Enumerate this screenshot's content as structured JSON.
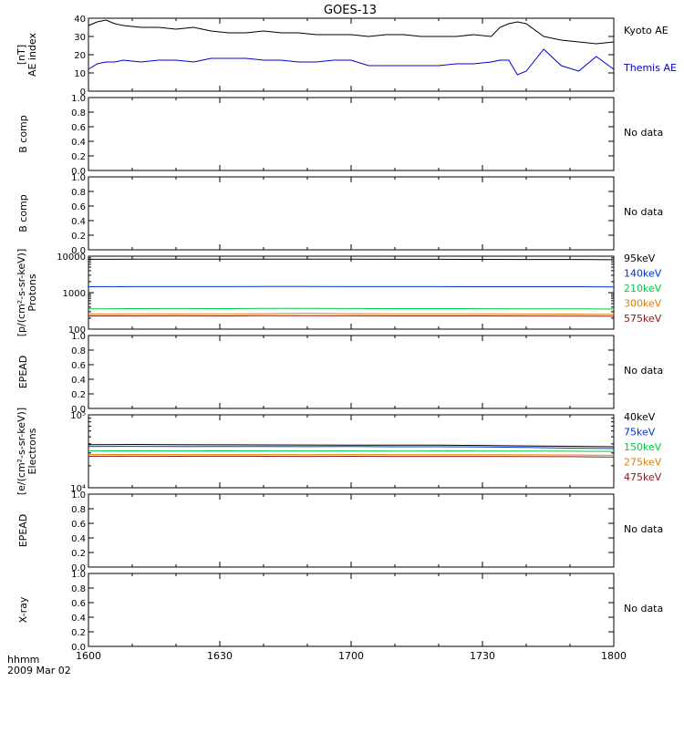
{
  "title": "GOES-13",
  "time_axis": {
    "ticks": [
      "1600",
      "1630",
      "1700",
      "1730",
      "1800"
    ],
    "range_minutes": [
      0,
      120
    ],
    "label_top": "hhmm",
    "label_bottom": "2009 Mar 02"
  },
  "chart_data": [
    {
      "type": "line",
      "panel": "ae",
      "ylabel": [
        "AE index",
        "[nT]"
      ],
      "ylim": [
        0,
        40
      ],
      "yticks": [
        "0",
        "10",
        "20",
        "30",
        "40"
      ],
      "x": [
        0,
        2,
        4,
        6,
        8,
        12,
        16,
        20,
        24,
        28,
        32,
        36,
        40,
        44,
        48,
        52,
        56,
        60,
        64,
        68,
        72,
        76,
        80,
        84,
        88,
        92,
        94,
        96,
        98,
        100,
        104,
        108,
        112,
        116,
        120
      ],
      "series": [
        {
          "name": "Kyoto AE",
          "color": "#000000",
          "values": [
            36,
            38,
            39,
            37,
            36,
            35,
            35,
            34,
            35,
            33,
            32,
            32,
            33,
            32,
            32,
            31,
            31,
            31,
            30,
            31,
            31,
            30,
            30,
            30,
            31,
            30,
            35,
            37,
            38,
            37,
            30,
            28,
            27,
            26,
            27
          ]
        },
        {
          "name": "Themis AE",
          "color": "#0000cc",
          "values": [
            12,
            15,
            16,
            16,
            17,
            16,
            17,
            17,
            16,
            18,
            18,
            18,
            17,
            17,
            16,
            16,
            17,
            17,
            14,
            14,
            14,
            14,
            14,
            15,
            15,
            16,
            17,
            17,
            9,
            11,
            23,
            14,
            11,
            19,
            12
          ]
        }
      ]
    },
    {
      "type": "line",
      "panel": "b1",
      "ylabel": [
        "B comp"
      ],
      "ylim": [
        0,
        1
      ],
      "yticks": [
        "0.0",
        "0.2",
        "0.4",
        "0.6",
        "0.8",
        "1.0"
      ],
      "status": "No data"
    },
    {
      "type": "line",
      "panel": "b2",
      "ylabel": [
        "B comp"
      ],
      "ylim": [
        0,
        1
      ],
      "yticks": [
        "0.0",
        "0.2",
        "0.4",
        "0.6",
        "0.8",
        "1.0"
      ],
      "status": "No data"
    },
    {
      "type": "line",
      "panel": "protons",
      "ylabel": [
        "Protons",
        "[p/(cm²-s-sr-keV)]"
      ],
      "yscale": "log",
      "ylim": [
        100,
        10000
      ],
      "yticks": [
        "100",
        "1000",
        "10000"
      ],
      "x": [
        0,
        10,
        20,
        30,
        40,
        50,
        60,
        70,
        80,
        90,
        100,
        110,
        120
      ],
      "series": [
        {
          "name": "575keV",
          "color": "#8b1a1a",
          "values": [
            230,
            230,
            232,
            231,
            233,
            235,
            232,
            230,
            231,
            230,
            229,
            228,
            225
          ]
        },
        {
          "name": "300keV",
          "color": "#e08000",
          "values": [
            260,
            262,
            263,
            262,
            264,
            270,
            265,
            262,
            263,
            262,
            260,
            258,
            252
          ]
        },
        {
          "name": "210keV",
          "color": "#00cc44",
          "values": [
            360,
            365,
            368,
            366,
            370,
            372,
            368,
            365,
            366,
            364,
            362,
            360,
            355
          ]
        },
        {
          "name": "140keV",
          "color": "#0033cc",
          "values": [
            1450,
            1460,
            1465,
            1460,
            1468,
            1470,
            1462,
            1460,
            1458,
            1455,
            1452,
            1450,
            1440
          ]
        },
        {
          "name": "95keV",
          "color": "#000000",
          "values": [
            8200,
            8250,
            8300,
            8280,
            8260,
            8300,
            8250,
            8200,
            8220,
            8180,
            8150,
            8120,
            8000
          ]
        }
      ]
    },
    {
      "type": "line",
      "panel": "epead1",
      "ylabel": [
        "EPEAD"
      ],
      "ylim": [
        0,
        1
      ],
      "yticks": [
        "0.0",
        "0.2",
        "0.4",
        "0.6",
        "0.8",
        "1.0"
      ],
      "status": "No data"
    },
    {
      "type": "line",
      "panel": "electrons",
      "ylabel": [
        "Electrons",
        "[e/(cm²-s-sr-keV)]"
      ],
      "yscale": "log",
      "ylim": [
        10000,
        100000
      ],
      "yticks": [
        "10⁴",
        "10⁵"
      ],
      "x": [
        0,
        10,
        20,
        30,
        40,
        50,
        60,
        70,
        80,
        90,
        100,
        110,
        120
      ],
      "series": [
        {
          "name": "475keV",
          "color": "#8b1a1a",
          "values": [
            27000,
            27100,
            27000,
            27050,
            27000,
            26950,
            27000,
            26900,
            26950,
            26900,
            26800,
            26700,
            26300
          ]
        },
        {
          "name": "275keV",
          "color": "#e08000",
          "values": [
            28500,
            28600,
            28500,
            28550,
            28500,
            28450,
            28500,
            28400,
            28450,
            28400,
            28300,
            28200,
            27900
          ]
        },
        {
          "name": "150keV",
          "color": "#00cc44",
          "values": [
            32000,
            32100,
            32000,
            32050,
            32000,
            31950,
            32000,
            31900,
            31950,
            31900,
            31800,
            31700,
            31500
          ]
        },
        {
          "name": "75keV",
          "color": "#0033cc",
          "values": [
            36800,
            36900,
            36700,
            36800,
            36700,
            36600,
            36700,
            36500,
            36500,
            36200,
            35700,
            35000,
            34500
          ]
        },
        {
          "name": "40keV",
          "color": "#000000",
          "values": [
            39000,
            39200,
            38900,
            38800,
            38700,
            38600,
            38500,
            38400,
            38300,
            38000,
            37500,
            37000,
            36500
          ]
        }
      ]
    },
    {
      "type": "line",
      "panel": "epead2",
      "ylabel": [
        "EPEAD"
      ],
      "ylim": [
        0,
        1
      ],
      "yticks": [
        "0.0",
        "0.2",
        "0.4",
        "0.6",
        "0.8",
        "1.0"
      ],
      "status": "No data"
    },
    {
      "type": "line",
      "panel": "xray",
      "ylabel": [
        "X-ray"
      ],
      "ylim": [
        0,
        1
      ],
      "yticks": [
        "0.0",
        "0.2",
        "0.4",
        "0.6",
        "0.8",
        "1.0"
      ],
      "status": "No data"
    }
  ]
}
